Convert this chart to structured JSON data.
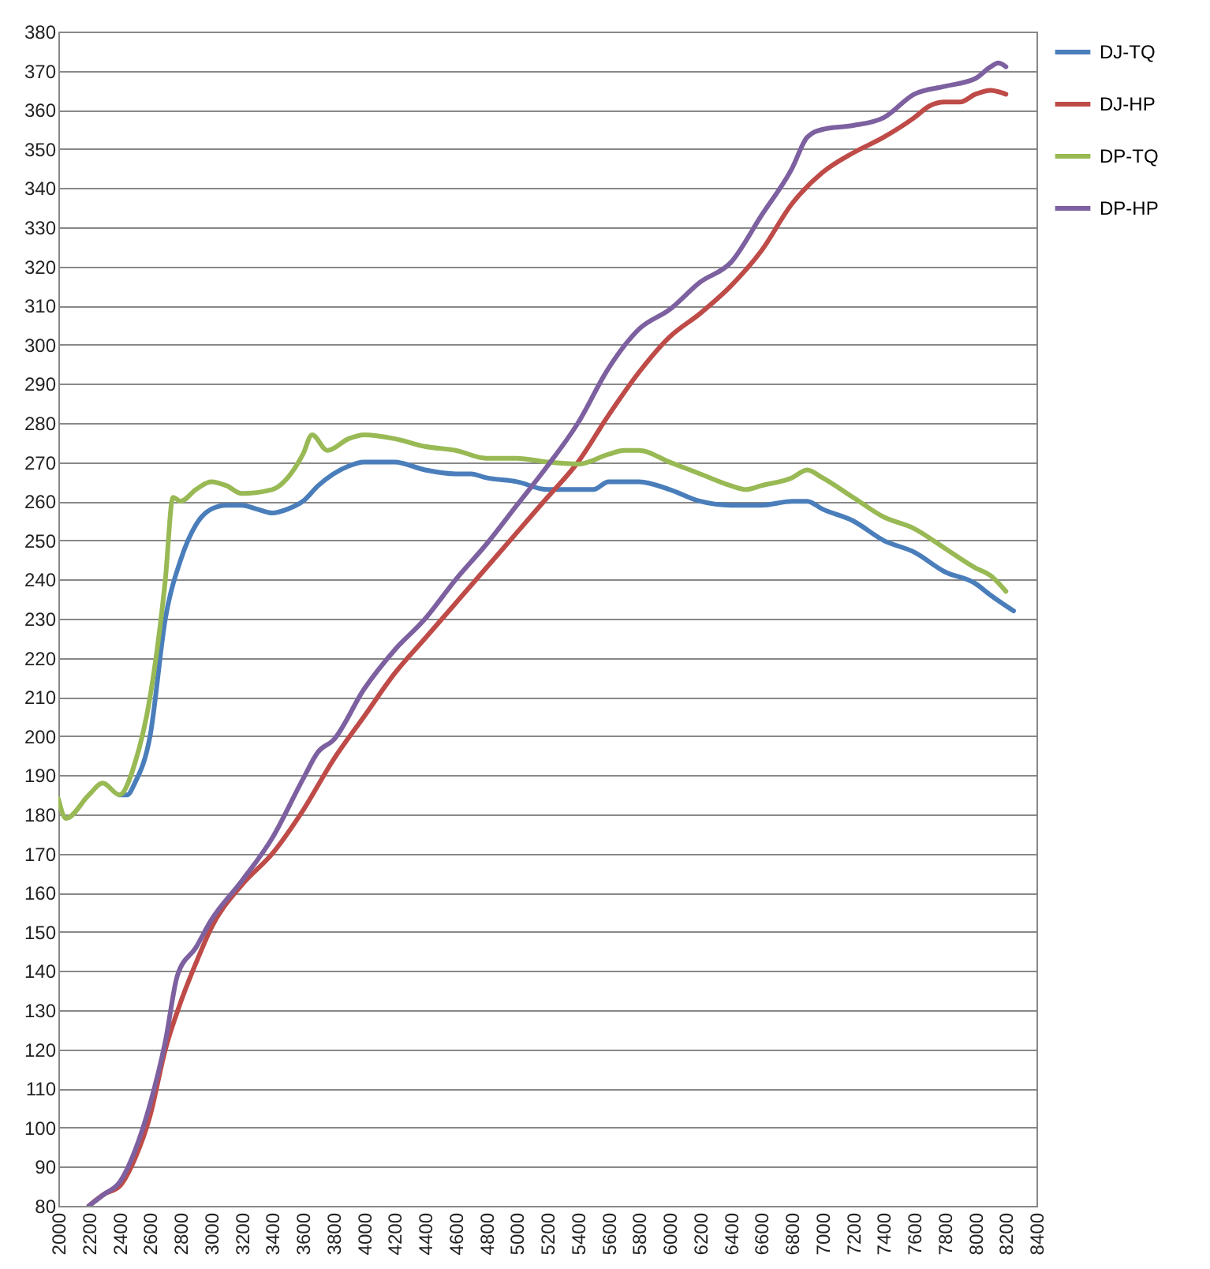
{
  "chart_data": {
    "type": "line",
    "xlim": [
      2000,
      8400
    ],
    "xticks": [
      2000,
      2200,
      2400,
      2600,
      2800,
      3000,
      3200,
      3400,
      3600,
      3800,
      4000,
      4200,
      4400,
      4600,
      4800,
      5000,
      5200,
      5400,
      5600,
      5800,
      6000,
      6200,
      6400,
      6600,
      6800,
      7000,
      7200,
      7400,
      7600,
      7800,
      8000,
      8200,
      8400
    ],
    "ylim": [
      80,
      380
    ],
    "yticks": [
      80,
      90,
      100,
      110,
      120,
      130,
      140,
      150,
      160,
      170,
      180,
      190,
      200,
      210,
      220,
      230,
      240,
      250,
      260,
      270,
      280,
      290,
      300,
      310,
      320,
      330,
      340,
      350,
      360,
      370,
      380
    ],
    "grid": "y",
    "legend": "right",
    "line_style": "solid",
    "marker": "none",
    "series": [
      {
        "name": "DJ-TQ",
        "color": "#4a7ebb",
        "x": [
          2400,
          2450,
          2500,
          2600,
          2700,
          2800,
          2900,
          3000,
          3100,
          3200,
          3300,
          3400,
          3500,
          3600,
          3700,
          3800,
          3900,
          4000,
          4200,
          4400,
          4600,
          4700,
          4800,
          5000,
          5200,
          5400,
          5500,
          5600,
          5800,
          6000,
          6200,
          6400,
          6600,
          6800,
          6900,
          7000,
          7200,
          7400,
          7600,
          7800,
          8000,
          8100,
          8250
        ],
        "values": [
          185,
          185,
          188,
          200,
          230,
          245,
          254,
          258,
          259,
          259,
          258,
          257,
          258,
          260,
          264,
          267,
          269,
          270,
          270,
          268,
          267,
          267,
          266,
          265,
          263,
          263,
          263,
          265,
          265,
          263,
          260,
          259,
          259,
          260,
          260,
          258,
          255,
          250,
          247,
          242,
          239,
          236,
          232
        ]
      },
      {
        "name": "DJ-HP",
        "color": "#be4b48",
        "x": [
          2200,
          2300,
          2400,
          2500,
          2600,
          2700,
          2800,
          2900,
          3000,
          3200,
          3400,
          3600,
          3800,
          4000,
          4200,
          4400,
          4600,
          4800,
          5000,
          5200,
          5400,
          5600,
          5800,
          6000,
          6200,
          6400,
          6600,
          6800,
          7000,
          7200,
          7400,
          7600,
          7700,
          7800,
          7900,
          8000,
          8100,
          8200
        ],
        "values": [
          80,
          83,
          85,
          92,
          103,
          120,
          132,
          142,
          151,
          162,
          170,
          181,
          194,
          205,
          216,
          225,
          234,
          243,
          252,
          261,
          270,
          282,
          293,
          302,
          308,
          315,
          324,
          336,
          344,
          349,
          353,
          358,
          361,
          362,
          362,
          364,
          365,
          364
        ]
      },
      {
        "name": "DP-TQ",
        "color": "#98b954",
        "x": [
          2000,
          2050,
          2200,
          2290,
          2400,
          2500,
          2600,
          2700,
          2750,
          2800,
          2900,
          3000,
          3100,
          3200,
          3400,
          3500,
          3600,
          3660,
          3760,
          3900,
          4000,
          4200,
          4400,
          4600,
          4800,
          5000,
          5200,
          5400,
          5600,
          5700,
          5800,
          6000,
          6200,
          6400,
          6500,
          6600,
          6800,
          6900,
          7000,
          7200,
          7400,
          7600,
          7800,
          8000,
          8100,
          8200
        ],
        "values": [
          184,
          179,
          185,
          188,
          185,
          193,
          210,
          240,
          261,
          260,
          263,
          265,
          264,
          262,
          263,
          266,
          272,
          277,
          273,
          276,
          277,
          276,
          274,
          273,
          271,
          271,
          270,
          269.5,
          272,
          273,
          273,
          270,
          267,
          264,
          263,
          264,
          266,
          268,
          266,
          261,
          256,
          253,
          248,
          243,
          241,
          237
        ]
      },
      {
        "name": "DP-HP",
        "color": "#7d60a0",
        "x": [
          2200,
          2300,
          2400,
          2500,
          2600,
          2700,
          2780,
          2900,
          3000,
          3200,
          3400,
          3600,
          3700,
          3800,
          4000,
          4200,
          4400,
          4600,
          4800,
          5000,
          5200,
          5400,
          5600,
          5800,
          6000,
          6200,
          6400,
          6600,
          6800,
          6900,
          7000,
          7200,
          7400,
          7600,
          7800,
          8000,
          8100,
          8150,
          8200
        ],
        "values": [
          80,
          83,
          86,
          94,
          106,
          122,
          139,
          146,
          153,
          163,
          174,
          189,
          196,
          199,
          212,
          222,
          230,
          240,
          249,
          259,
          269,
          280,
          294,
          304,
          309,
          316,
          321,
          333,
          345,
          353,
          355,
          356,
          358,
          364,
          366,
          368,
          371,
          372,
          371
        ]
      }
    ]
  }
}
